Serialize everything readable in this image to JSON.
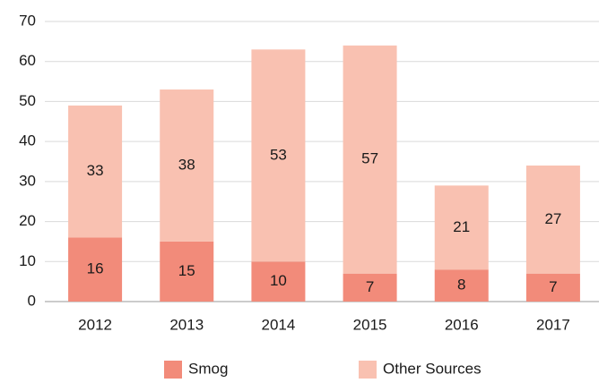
{
  "chart_data": {
    "type": "stacked_bar",
    "categories": [
      "2012",
      "2013",
      "2014",
      "2015",
      "2016",
      "2017"
    ],
    "series": [
      {
        "name": "Smog",
        "color": "#f28b7a",
        "values": [
          16,
          15,
          10,
          7,
          8,
          7
        ]
      },
      {
        "name": "Other Sources",
        "color": "#f9c1b1",
        "values": [
          33,
          38,
          53,
          57,
          21,
          27
        ]
      }
    ],
    "ylim": [
      0,
      70
    ],
    "yticks": [
      0,
      10,
      20,
      30,
      40,
      50,
      60,
      70
    ],
    "grid": true,
    "legend": "bottom"
  }
}
